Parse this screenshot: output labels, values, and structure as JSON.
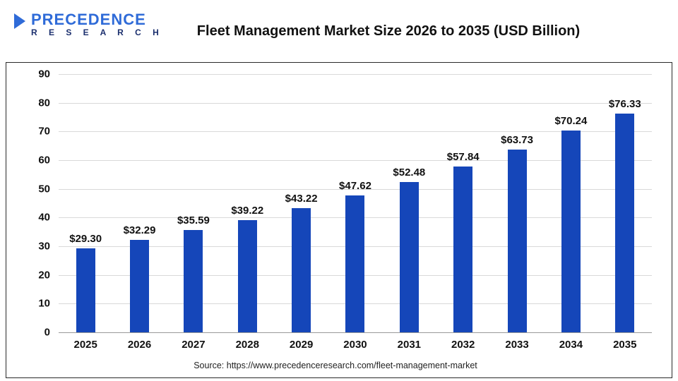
{
  "header": {
    "title": "Fleet Management Market Size 2026 to 2035 (USD Billion)",
    "logo_line1": "PRECEDENCE",
    "logo_line2": "R E S E A R C H"
  },
  "chart_data": {
    "type": "bar",
    "title": "Fleet Management Market Size 2026 to 2035 (USD Billion)",
    "categories": [
      "2025",
      "2026",
      "2027",
      "2028",
      "2029",
      "2030",
      "2031",
      "2032",
      "2033",
      "2034",
      "2035"
    ],
    "values": [
      29.3,
      32.29,
      35.59,
      39.22,
      43.22,
      47.62,
      52.48,
      57.84,
      63.73,
      70.24,
      76.33
    ],
    "value_labels": [
      "$29.30",
      "$32.29",
      "$35.59",
      "$39.22",
      "$43.22",
      "$47.62",
      "$52.48",
      "$57.84",
      "$63.73",
      "$70.24",
      "$76.33"
    ],
    "xlabel": "",
    "ylabel": "",
    "ylim": [
      0,
      90
    ],
    "ytick_step": 10,
    "grid": true,
    "legend_position": "none",
    "bar_color": "#1546b9"
  },
  "footer": {
    "source": "Source: https://www.precedenceresearch.com/fleet-management-market"
  },
  "colors": {
    "bar": "#1546b9",
    "logo_primary": "#2f6bd8",
    "logo_secondary": "#1b2f6e",
    "gridline": "#d9d9d9",
    "text": "#111111"
  }
}
